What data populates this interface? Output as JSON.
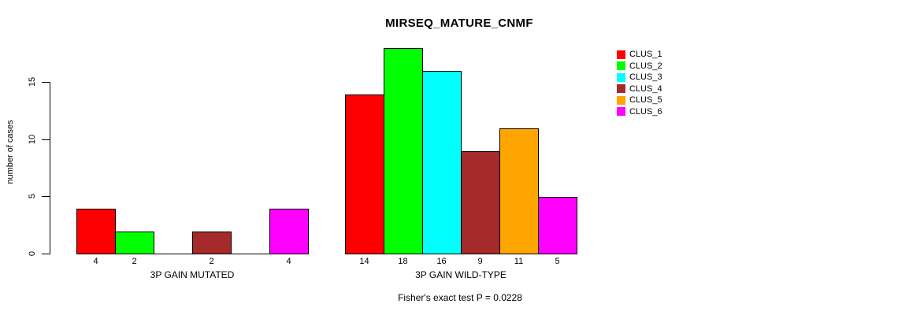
{
  "chart_data": {
    "type": "bar",
    "title": "MIRSEQ_MATURE_CNMF",
    "ylabel": "number of cases",
    "annotation": "Fisher's exact test P = 0.0228",
    "legend_position": "right",
    "grid": false,
    "ylim": [
      0,
      18
    ],
    "yticks": [
      0,
      5,
      10,
      15
    ],
    "series": [
      {
        "name": "CLUS_1",
        "color": "#ff0000"
      },
      {
        "name": "CLUS_2",
        "color": "#00ff00"
      },
      {
        "name": "CLUS_3",
        "color": "#00ffff"
      },
      {
        "name": "CLUS_4",
        "color": "#a52a2a"
      },
      {
        "name": "CLUS_5",
        "color": "#ffa500"
      },
      {
        "name": "CLUS_6",
        "color": "#ff00ff"
      }
    ],
    "groups": [
      {
        "label": "3P GAIN MUTATED",
        "values": [
          4,
          2,
          0,
          2,
          0,
          4
        ]
      },
      {
        "label": "3P GAIN WILD-TYPE",
        "values": [
          14,
          18,
          16,
          9,
          11,
          5
        ]
      }
    ],
    "bar_value_labels": true,
    "zero_bars_drawn_as_baseline_segment": true
  },
  "colors": {
    "background": "#ffffff",
    "axis": "#000000",
    "text": "#000000",
    "bar_border": "#000000"
  }
}
